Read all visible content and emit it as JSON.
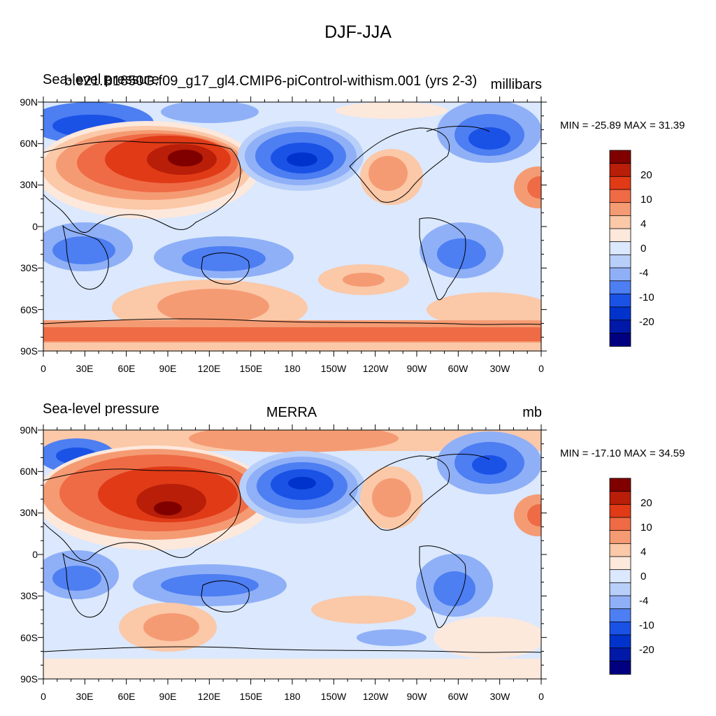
{
  "title": "DJF-JJA",
  "colors": {
    "levels": [
      "#000080",
      "#0019a8",
      "#0033cc",
      "#1a52e6",
      "#4d7ef2",
      "#8fb0f7",
      "#b8cffa",
      "#dbe8fd",
      "#fde8dc",
      "#fbc8a8",
      "#f59b73",
      "#ee6b45",
      "#e03a17",
      "#b81e08",
      "#800000"
    ],
    "coastline": "#000000"
  },
  "colorbar_labels": [
    "20",
    "10",
    "4",
    "0",
    "-4",
    "-10",
    "-20"
  ],
  "lat_labels": [
    "90N",
    "60N",
    "30N",
    "0",
    "30S",
    "60S",
    "90S"
  ],
  "lon_labels": [
    "0",
    "30E",
    "60E",
    "90E",
    "120E",
    "150E",
    "180",
    "150W",
    "120W",
    "90W",
    "60W",
    "30W",
    "0"
  ],
  "panels": [
    {
      "left_title_a": "Sea-level pressure",
      "left_title_b": "b.e21.B1850G.f09_g17_gl4.CMIP6-piControl-withism.001 (yrs 2-3)",
      "center_title": "",
      "units": "millibars",
      "minmax": "MIN = -25.89 MAX =  31.39"
    },
    {
      "left_title_a": "Sea-level pressure",
      "left_title_b": "",
      "center_title": "MERRA",
      "units": "mb",
      "minmax": "MIN = -17.10 MAX =  34.59"
    }
  ]
}
